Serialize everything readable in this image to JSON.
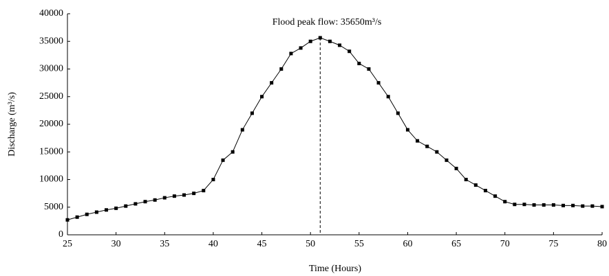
{
  "chart_data": {
    "type": "line",
    "annotation": "Flood peak flow: 35650m³/s",
    "peak_x": 51,
    "xlabel": "Time (Hours)",
    "ylabel": "Discharge (m³/s)",
    "x": [
      25,
      26,
      27,
      28,
      29,
      30,
      31,
      32,
      33,
      34,
      35,
      36,
      37,
      38,
      39,
      40,
      41,
      42,
      43,
      44,
      45,
      46,
      47,
      48,
      49,
      50,
      51,
      52,
      53,
      54,
      55,
      56,
      57,
      58,
      59,
      60,
      61,
      62,
      63,
      64,
      65,
      66,
      67,
      68,
      69,
      70,
      71,
      72,
      73,
      74,
      75,
      76,
      77,
      78,
      79,
      80
    ],
    "series": [
      {
        "color": "#000000",
        "values": [
          2700,
          3200,
          3700,
          4100,
          4500,
          4800,
          5200,
          5600,
          6000,
          6300,
          6700,
          7000,
          7200,
          7500,
          8000,
          10000,
          13500,
          15000,
          19000,
          22000,
          25000,
          27500,
          30000,
          32800,
          33800,
          35000,
          35650,
          35000,
          34300,
          33200,
          31000,
          30000,
          27500,
          25000,
          22000,
          19000,
          17000,
          16000,
          15000,
          13500,
          12000,
          10000,
          9000,
          8000,
          7000,
          6000,
          5500,
          5500,
          5400,
          5400,
          5400,
          5300,
          5300,
          5200,
          5200,
          5100
        ]
      }
    ],
    "xlim": [
      25,
      80
    ],
    "xticks": [
      25,
      30,
      35,
      40,
      45,
      50,
      55,
      60,
      65,
      70,
      75,
      80
    ],
    "ylim": [
      0,
      40000
    ],
    "yticks": [
      0,
      5000,
      10000,
      15000,
      20000,
      25000,
      30000,
      35000,
      40000
    ],
    "grid": false
  }
}
